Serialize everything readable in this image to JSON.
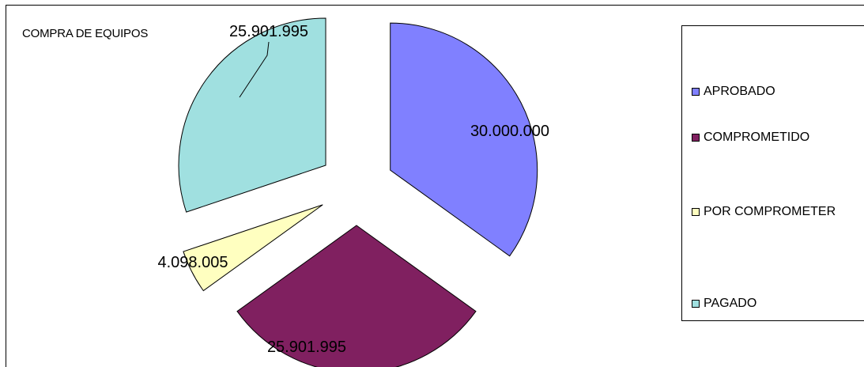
{
  "chart_data": {
    "type": "pie",
    "title": "COMPRA DE EQUIPOS",
    "categories": [
      "APROBADO",
      "COMPROMETIDO",
      "POR COMPROMETER",
      "PAGADO"
    ],
    "values": [
      30000000,
      25901995,
      4098005,
      25901995
    ],
    "value_labels": [
      "30.000.000",
      "25.901.995",
      "4.098.005",
      "25.901.995"
    ],
    "colors": [
      "#8080ff",
      "#802060",
      "#ffffc0",
      "#a0e0e0"
    ],
    "exploded": true,
    "legend_position": "right"
  }
}
